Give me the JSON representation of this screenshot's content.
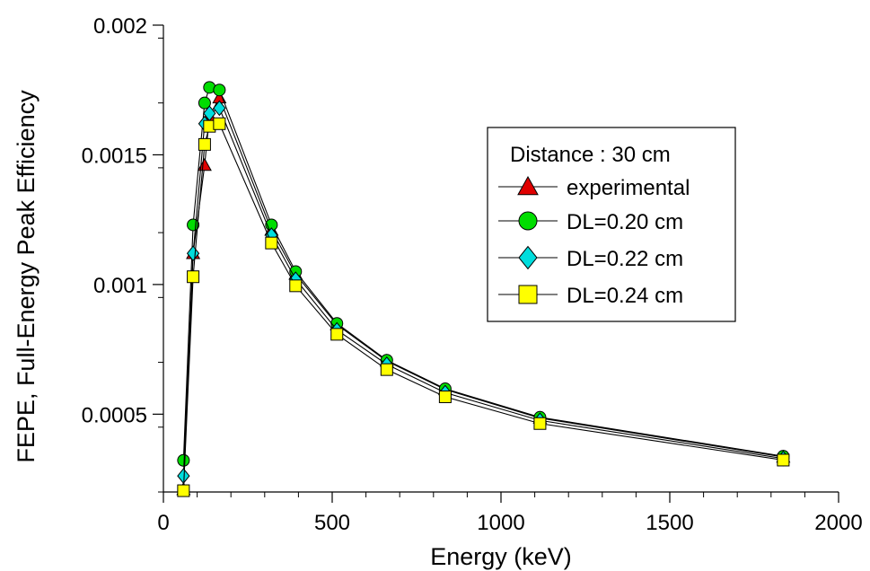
{
  "chart_data": {
    "type": "line",
    "xlabel": "Energy (keV)",
    "ylabel": "FEPE, Full-Energy Peak Efficiency",
    "xlim": [
      0,
      2000
    ],
    "ylim": [
      0.0002,
      0.002
    ],
    "x_ticks": [
      0,
      500,
      1000,
      1500,
      2000
    ],
    "x_tick_labels": [
      "0",
      "500",
      "1000",
      "1500",
      "2000"
    ],
    "y_ticks": [
      0.0005,
      0.001,
      0.0015,
      0.002
    ],
    "y_tick_labels": [
      "0.0005",
      "0.001",
      "0.0015",
      "0.002"
    ],
    "x_minor_step": 100,
    "y_minor_step": 0.00025,
    "grid": false,
    "legend": {
      "title": "Distance : 30 cm",
      "placement": "center-right"
    },
    "series": [
      {
        "name": "experimental",
        "marker": "triangle",
        "color": "#e00000",
        "x": [
          59.5,
          88.0,
          122.1,
          136.5,
          165.9,
          320.1,
          391.7,
          514.0,
          661.7,
          834.8,
          1115.5,
          1836.1
        ],
        "y": [
          0.00021,
          0.00112,
          0.00146,
          0.00165,
          0.00172,
          0.00121,
          0.00104,
          0.000845,
          0.000705,
          0.000595,
          0.000485,
          0.000335
        ]
      },
      {
        "name": "DL=0.20 cm",
        "marker": "circle",
        "color": "#00dd00",
        "x": [
          59.5,
          88.0,
          122.1,
          136.5,
          165.9,
          320.1,
          391.7,
          514.0,
          661.7,
          834.8,
          1115.5,
          1836.1
        ],
        "y": [
          0.000322,
          0.00123,
          0.0017,
          0.00176,
          0.00175,
          0.00123,
          0.00105,
          0.00085,
          0.000708,
          0.000598,
          0.000488,
          0.000338
        ]
      },
      {
        "name": "DL=0.22 cm",
        "marker": "diamond",
        "color": "#00dddd",
        "x": [
          59.5,
          88.0,
          122.1,
          136.5,
          165.9,
          320.1,
          391.7,
          514.0,
          661.7,
          834.8,
          1115.5,
          1836.1
        ],
        "y": [
          0.000262,
          0.00112,
          0.00162,
          0.00166,
          0.00168,
          0.00119,
          0.00102,
          0.000825,
          0.000692,
          0.000583,
          0.000476,
          0.000329
        ]
      },
      {
        "name": "DL=0.24 cm",
        "marker": "square",
        "color": "#ffff00",
        "x": [
          59.5,
          88.0,
          122.1,
          136.5,
          165.9,
          320.1,
          391.7,
          514.0,
          661.7,
          834.8,
          1115.5,
          1836.1
        ],
        "y": [
          0.000205,
          0.00103,
          0.00154,
          0.00161,
          0.00162,
          0.00116,
          0.000995,
          0.000808,
          0.000672,
          0.000567,
          0.000464,
          0.000323
        ]
      }
    ]
  }
}
